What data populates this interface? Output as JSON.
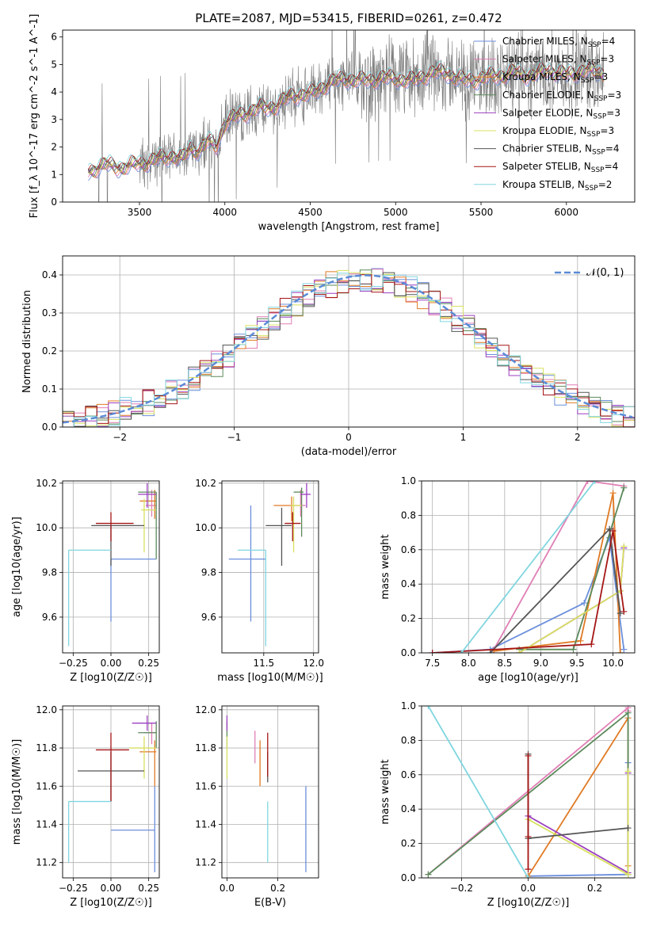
{
  "figure_title": "PLATE=2087, MJD=53415, FIBERID=0261, z=0.472",
  "colors": {
    "Chabrier MILES": "#6b8fdc",
    "Salpeter MILES": "#e07fb5",
    "Kroupa MILES": "#e07a24",
    "Chabrier ELODIE": "#5b8a5b",
    "Salpeter ELODIE": "#9b3fbf",
    "Kroupa ELODIE": "#d8e060",
    "Chabrier STELIB": "#555555",
    "Salpeter STELIB": "#a51515",
    "Kroupa STELIB": "#80d6e0",
    "data": "#7a7a7a"
  },
  "chart_data": [
    {
      "id": "spectrum",
      "type": "line",
      "title": "PLATE=2087, MJD=53415, FIBERID=0261, z=0.472",
      "xlabel": "wavelength [Angstrom, rest frame]",
      "ylabel": "Flux [f_λ 10^-17 erg cm^-2 s^-1 A^-1]",
      "xlim": [
        3050,
        6400
      ],
      "ylim": [
        0,
        6.25
      ],
      "xticks": [
        3500,
        4000,
        4500,
        5000,
        5500,
        6000
      ],
      "yticks": [
        0,
        1,
        2,
        3,
        4,
        5,
        6
      ],
      "grid": false,
      "legend_position": "right",
      "legend": [
        {
          "model": "Chabrier MILES",
          "nssp": "4"
        },
        {
          "model": "Salpeter MILES",
          "nssp": "3"
        },
        {
          "model": "Kroupa MILES",
          "nssp": "3"
        },
        {
          "model": "Chabrier ELODIE",
          "nssp": "3"
        },
        {
          "model": "Salpeter ELODIE",
          "nssp": "3"
        },
        {
          "model": "Kroupa ELODIE",
          "nssp": "3"
        },
        {
          "model": "Chabrier STELIB",
          "nssp": "4"
        },
        {
          "model": "Salpeter STELIB",
          "nssp": "4"
        },
        {
          "model": "Kroupa STELIB",
          "nssp": "2"
        }
      ],
      "continuum_model": {
        "x": [
          3200,
          3250,
          3300,
          3400,
          3500,
          3600,
          3700,
          3750,
          3800,
          3850,
          3900,
          3950,
          4000,
          4100,
          4200,
          4300,
          4400,
          4500,
          4600,
          4700,
          4800,
          4900,
          5000,
          5100,
          5200,
          5300,
          5400,
          5500,
          5600,
          5700,
          5800,
          5900,
          6000,
          6100,
          6200
        ],
        "y": [
          1.1,
          1.25,
          1.35,
          1.25,
          1.4,
          1.55,
          1.7,
          1.55,
          1.95,
          1.9,
          2.2,
          2.0,
          2.9,
          3.2,
          3.4,
          3.5,
          3.9,
          3.9,
          4.3,
          4.5,
          4.4,
          4.5,
          4.5,
          4.4,
          4.7,
          4.7,
          4.4,
          4.5,
          4.6,
          4.7,
          4.6,
          4.8,
          4.6,
          4.8,
          4.7
        ]
      }
    },
    {
      "id": "residuals",
      "type": "line",
      "xlabel": "(data-model)/error",
      "ylabel": "Normed distribution",
      "xlim": [
        -2.5,
        2.5
      ],
      "ylim": [
        0,
        0.45
      ],
      "xticks": [
        -2,
        -1,
        0,
        1,
        2
      ],
      "yticks": [
        0.0,
        0.1,
        0.2,
        0.3,
        0.4
      ],
      "grid": true,
      "legend_position": "top-right",
      "legend_label": "𝒩(0, 1)",
      "gaussian": {
        "mean": 0.15,
        "sigma": 1.0
      }
    },
    {
      "id": "age_vs_Z",
      "type": "scatter",
      "xlabel": "Z [log10(Z/Z☉)]",
      "ylabel": "age [log10(age/yr)]",
      "xlim": [
        -0.32,
        0.32
      ],
      "ylim": [
        9.44,
        10.21
      ],
      "xticks": [
        -0.25,
        0.0,
        0.25
      ],
      "yticks": [
        9.6,
        9.8,
        10.0,
        10.2
      ],
      "grid": true,
      "points": [
        {
          "model": "Chabrier MILES",
          "x": 0.0,
          "y": 9.86,
          "xerr": [
            0.0,
            0.3
          ],
          "yerr": [
            0.28,
            0.0
          ]
        },
        {
          "model": "Salpeter MILES",
          "x": 0.27,
          "y": 10.1,
          "xerr": [
            0.04,
            0.03
          ],
          "yerr": [
            0.05,
            0.07
          ]
        },
        {
          "model": "Kroupa MILES",
          "x": 0.29,
          "y": 10.12,
          "xerr": [
            0.1,
            0.01
          ],
          "yerr": [
            0.08,
            0.05
          ]
        },
        {
          "model": "Chabrier ELODIE",
          "x": 0.3,
          "y": 10.16,
          "xerr": [
            0.12,
            0.0
          ],
          "yerr": [
            0.3,
            0.0
          ]
        },
        {
          "model": "Salpeter ELODIE",
          "x": 0.24,
          "y": 10.15,
          "xerr": [
            0.06,
            0.06
          ],
          "yerr": [
            0.06,
            0.05
          ]
        },
        {
          "model": "Kroupa ELODIE",
          "x": 0.22,
          "y": 10.08,
          "xerr": [
            0.02,
            0.08
          ],
          "yerr": [
            0.19,
            0.05
          ]
        },
        {
          "model": "Chabrier STELIB",
          "x": 0.0,
          "y": 10.01,
          "xerr": [
            0.13,
            0.22
          ],
          "yerr": [
            0.18,
            0.0
          ]
        },
        {
          "model": "Salpeter STELIB",
          "x": 0.0,
          "y": 10.02,
          "xerr": [
            0.1,
            0.15
          ],
          "yerr": [
            0.08,
            0.05
          ]
        },
        {
          "model": "Kroupa STELIB",
          "x": -0.28,
          "y": 9.9,
          "xerr": [
            0.0,
            0.28
          ],
          "yerr": [
            0.43,
            0.0
          ]
        }
      ]
    },
    {
      "id": "age_vs_mass",
      "type": "scatter",
      "xlabel": "mass [log10(M/M☉)]",
      "ylabel": "",
      "xlim": [
        11.08,
        12.05
      ],
      "ylim": [
        9.44,
        10.21
      ],
      "xticks": [
        11.5,
        12.0
      ],
      "yticks": [
        9.6,
        9.8,
        10.0,
        10.2
      ],
      "grid": true,
      "points": [
        {
          "model": "Chabrier MILES",
          "x": 11.37,
          "y": 9.86,
          "xerr": [
            0.22,
            0.15
          ],
          "yerr": [
            0.28,
            0.24
          ]
        },
        {
          "model": "Salpeter MILES",
          "x": 11.87,
          "y": 10.1,
          "xerr": [
            0.06,
            0.05
          ],
          "yerr": [
            0.05,
            0.07
          ]
        },
        {
          "model": "Kroupa MILES",
          "x": 11.78,
          "y": 10.1,
          "xerr": [
            0.18,
            0.02
          ],
          "yerr": [
            0.07,
            0.04
          ]
        },
        {
          "model": "Chabrier ELODIE",
          "x": 11.88,
          "y": 10.16,
          "xerr": [
            0.08,
            0.02
          ],
          "yerr": [
            0.2,
            0.02
          ]
        },
        {
          "model": "Salpeter ELODIE",
          "x": 11.93,
          "y": 10.15,
          "xerr": [
            0.06,
            0.04
          ],
          "yerr": [
            0.06,
            0.05
          ]
        },
        {
          "model": "Kroupa ELODIE",
          "x": 11.8,
          "y": 10.1,
          "xerr": [
            0.03,
            0.08
          ],
          "yerr": [
            0.21,
            0.04
          ]
        },
        {
          "model": "Chabrier STELIB",
          "x": 11.68,
          "y": 10.01,
          "xerr": [
            0.16,
            0.1
          ],
          "yerr": [
            0.18,
            0.08
          ]
        },
        {
          "model": "Salpeter STELIB",
          "x": 11.79,
          "y": 10.02,
          "xerr": [
            0.08,
            0.08
          ],
          "yerr": [
            0.08,
            0.05
          ]
        },
        {
          "model": "Kroupa STELIB",
          "x": 11.52,
          "y": 9.9,
          "xerr": [
            0.28,
            0.0
          ],
          "yerr": [
            0.43,
            0.0
          ]
        }
      ]
    },
    {
      "id": "mass_weight_vs_age",
      "type": "line",
      "xlabel": "age [log10(age/yr)]",
      "ylabel": "mass weight",
      "xlim": [
        7.35,
        10.3
      ],
      "ylim": [
        0.0,
        1.0
      ],
      "xticks": [
        7.5,
        8.0,
        8.5,
        9.0,
        9.5,
        10.0
      ],
      "yticks": [
        0.0,
        0.2,
        0.4,
        0.6,
        0.8,
        1.0
      ],
      "grid": true,
      "series": [
        {
          "model": "Chabrier MILES",
          "x": [
            7.5,
            8.3,
            9.6,
            9.95,
            10.15
          ],
          "y": [
            0.0,
            0.02,
            0.29,
            0.67,
            0.02
          ]
        },
        {
          "model": "Salpeter MILES",
          "x": [
            8.35,
            9.65,
            10.15
          ],
          "y": [
            0.02,
            1.0,
            0.97
          ]
        },
        {
          "model": "Kroupa MILES",
          "x": [
            8.35,
            9.55,
            10.0,
            10.1
          ],
          "y": [
            0.01,
            0.07,
            0.93,
            0.0
          ]
        },
        {
          "model": "Chabrier ELODIE",
          "x": [
            8.7,
            9.45,
            10.15
          ],
          "y": [
            0.02,
            0.02,
            0.96
          ]
        },
        {
          "model": "Salpeter ELODIE",
          "x": [
            8.7,
            10.1,
            10.15
          ],
          "y": [
            0.0,
            0.36,
            0.61
          ]
        },
        {
          "model": "Kroupa ELODIE",
          "x": [
            8.7,
            10.1,
            10.15
          ],
          "y": [
            0.0,
            0.36,
            0.62
          ]
        },
        {
          "model": "Chabrier STELIB",
          "x": [
            8.3,
            9.95,
            10.1
          ],
          "y": [
            0.0,
            0.72,
            0.23
          ]
        },
        {
          "model": "Salpeter STELIB",
          "x": [
            7.5,
            9.7,
            10.0,
            10.15
          ],
          "y": [
            0.0,
            0.05,
            0.71,
            0.24
          ]
        },
        {
          "model": "Kroupa STELIB",
          "x": [
            7.9,
            9.75
          ],
          "y": [
            0.0,
            1.0
          ]
        }
      ]
    },
    {
      "id": "mass_vs_Z",
      "type": "scatter",
      "xlabel": "Z [log10(Z/Z☉)]",
      "ylabel": "mass [log10(M/M☉)]",
      "xlim": [
        -0.32,
        0.32
      ],
      "ylim": [
        11.12,
        12.02
      ],
      "xticks": [
        -0.25,
        0.0,
        0.25
      ],
      "yticks": [
        11.2,
        11.4,
        11.6,
        11.8,
        12.0
      ],
      "grid": true,
      "points": [
        {
          "model": "Chabrier MILES",
          "x": 0.29,
          "y": 11.37,
          "xerr": [
            0.29,
            0.0
          ],
          "yerr": [
            0.22,
            0.23
          ]
        },
        {
          "model": "Salpeter MILES",
          "x": 0.27,
          "y": 11.88,
          "xerr": [
            0.05,
            0.03
          ],
          "yerr": [
            0.06,
            0.05
          ]
        },
        {
          "model": "Kroupa MILES",
          "x": 0.29,
          "y": 11.78,
          "xerr": [
            0.1,
            0.01
          ],
          "yerr": [
            0.18,
            0.06
          ]
        },
        {
          "model": "Chabrier ELODIE",
          "x": 0.3,
          "y": 11.88,
          "xerr": [
            0.12,
            0.0
          ],
          "yerr": [
            0.08,
            0.06
          ]
        },
        {
          "model": "Salpeter ELODIE",
          "x": 0.24,
          "y": 11.93,
          "xerr": [
            0.1,
            0.06
          ],
          "yerr": [
            0.04,
            0.04
          ]
        },
        {
          "model": "Kroupa ELODIE",
          "x": 0.22,
          "y": 11.8,
          "xerr": [
            0.1,
            0.08
          ],
          "yerr": [
            0.16,
            0.06
          ]
        },
        {
          "model": "Chabrier STELIB",
          "x": 0.0,
          "y": 11.68,
          "xerr": [
            0.22,
            0.22
          ],
          "yerr": [
            0.16,
            0.1
          ]
        },
        {
          "model": "Salpeter STELIB",
          "x": 0.0,
          "y": 11.79,
          "xerr": [
            0.1,
            0.12
          ],
          "yerr": [
            0.27,
            0.09
          ]
        },
        {
          "model": "Kroupa STELIB",
          "x": -0.28,
          "y": 11.52,
          "xerr": [
            0.0,
            0.28
          ],
          "yerr": [
            0.32,
            0.0
          ]
        }
      ]
    },
    {
      "id": "mass_vs_EBV",
      "type": "scatter",
      "xlabel": "E(B-V)",
      "ylabel": "",
      "xlim": [
        -0.02,
        0.36
      ],
      "ylim": [
        11.12,
        12.02
      ],
      "xticks": [
        0.0,
        0.2
      ],
      "yticks": [
        11.2,
        11.4,
        11.6,
        11.8,
        12.0
      ],
      "grid": true,
      "points": [
        {
          "model": "Chabrier MILES",
          "x": 0.31,
          "y": 11.37,
          "yerr": [
            0.22,
            0.23
          ]
        },
        {
          "model": "Salpeter MILES",
          "x": 0.11,
          "y": 11.85,
          "yerr": [
            0.13,
            0.04
          ]
        },
        {
          "model": "Kroupa MILES",
          "x": 0.13,
          "y": 11.78,
          "yerr": [
            0.18,
            0.06
          ]
        },
        {
          "model": "Chabrier ELODIE",
          "x": 0.0,
          "y": 11.88,
          "yerr": [
            0.08,
            0.06
          ]
        },
        {
          "model": "Salpeter ELODIE",
          "x": 0.0,
          "y": 11.93,
          "yerr": [
            0.04,
            0.04
          ]
        },
        {
          "model": "Kroupa ELODIE",
          "x": 0.0,
          "y": 11.8,
          "yerr": [
            0.16,
            0.06
          ]
        },
        {
          "model": "Chabrier STELIB",
          "x": 0.16,
          "y": 11.72,
          "yerr": [
            0.1,
            0.06
          ]
        },
        {
          "model": "Salpeter STELIB",
          "x": 0.16,
          "y": 11.79,
          "yerr": [
            0.14,
            0.09
          ]
        },
        {
          "model": "Kroupa STELIB",
          "x": 0.16,
          "y": 11.52,
          "yerr": [
            0.32,
            0.0
          ]
        }
      ]
    },
    {
      "id": "mass_weight_vs_Z",
      "type": "line",
      "xlabel": "Z [log10(Z/Z☉)]",
      "ylabel": "mass weight",
      "xlim": [
        -0.32,
        0.32
      ],
      "ylim": [
        0.0,
        1.0
      ],
      "xticks": [
        -0.2,
        0.0,
        0.2
      ],
      "yticks": [
        0.0,
        0.2,
        0.4,
        0.6,
        0.8,
        1.0
      ],
      "grid": true,
      "series": [
        {
          "model": "Chabrier MILES",
          "x": [
            0.0,
            0.3,
            0.3
          ],
          "y": [
            0.01,
            0.02,
            0.67
          ]
        },
        {
          "model": "Salpeter MILES",
          "x": [
            -0.3,
            0.3,
            0.3
          ],
          "y": [
            0.02,
            0.99,
            0.97
          ]
        },
        {
          "model": "Kroupa MILES",
          "x": [
            0.0,
            0.3,
            0.3
          ],
          "y": [
            0.01,
            0.93,
            0.07
          ]
        },
        {
          "model": "Chabrier ELODIE",
          "x": [
            -0.3,
            0.3,
            0.3
          ],
          "y": [
            0.02,
            0.96,
            0.02
          ]
        },
        {
          "model": "Salpeter ELODIE",
          "x": [
            0.0,
            0.3,
            0.3
          ],
          "y": [
            0.36,
            0.03,
            0.61
          ]
        },
        {
          "model": "Kroupa ELODIE",
          "x": [
            0.0,
            0.3,
            0.3
          ],
          "y": [
            0.34,
            0.02,
            0.62
          ]
        },
        {
          "model": "Chabrier STELIB",
          "x": [
            0.0,
            0.0,
            0.3
          ],
          "y": [
            0.72,
            0.23,
            0.29
          ]
        },
        {
          "model": "Salpeter STELIB",
          "x": [
            0.0,
            0.0,
            0.0
          ],
          "y": [
            0.05,
            0.71,
            0.24
          ]
        },
        {
          "model": "Kroupa STELIB",
          "x": [
            -0.3,
            0.0
          ],
          "y": [
            1.0,
            0.0
          ]
        }
      ]
    }
  ]
}
